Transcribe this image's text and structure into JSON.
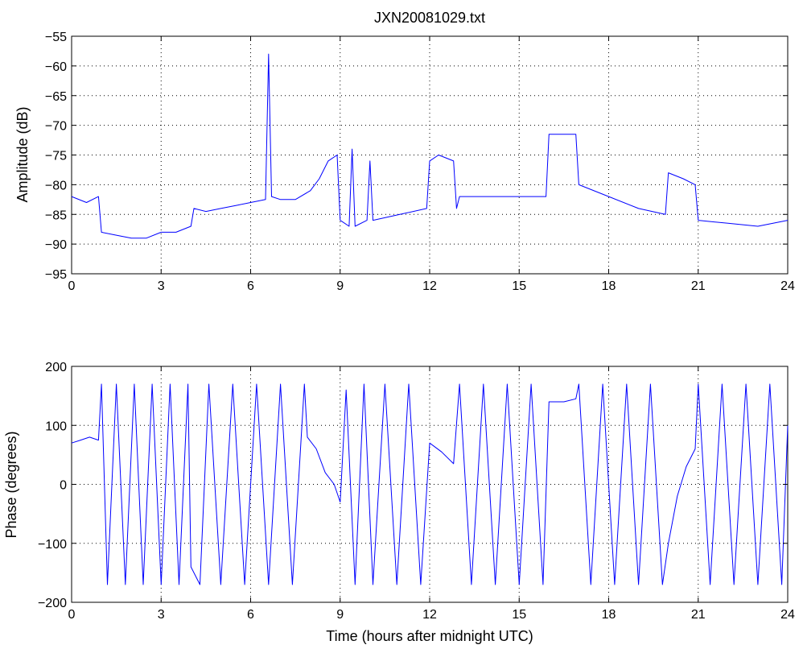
{
  "chart_data": [
    {
      "type": "line",
      "title": "JXN20081029.txt",
      "xlabel": "",
      "ylabel": "Amplitude (dB)",
      "xlim": [
        0,
        24
      ],
      "ylim": [
        -95,
        -55
      ],
      "xticks": [
        0,
        3,
        6,
        9,
        12,
        15,
        18,
        21,
        24
      ],
      "yticks": [
        -95,
        -90,
        -85,
        -80,
        -75,
        -70,
        -65,
        -60,
        -55
      ],
      "xtick_labels": [
        "0",
        "3",
        "6",
        "9",
        "12",
        "15",
        "18",
        "21",
        "24"
      ],
      "ytick_labels": [
        "−95",
        "−90",
        "−85",
        "−80",
        "−75",
        "−70",
        "−65",
        "−60",
        "−55"
      ],
      "grid": true,
      "series": [
        {
          "color": "#0000ff",
          "x": [
            0,
            0.5,
            0.9,
            1.0,
            1.5,
            2.0,
            2.5,
            3.0,
            3.5,
            4.0,
            4.1,
            4.5,
            5.0,
            5.5,
            6.0,
            6.5,
            6.6,
            6.7,
            7.0,
            7.5,
            8.0,
            8.3,
            8.6,
            8.9,
            9.0,
            9.3,
            9.4,
            9.5,
            9.9,
            10.0,
            10.1,
            11.0,
            11.9,
            12.0,
            12.3,
            12.8,
            12.9,
            13.0,
            14.0,
            15.0,
            15.9,
            16.0,
            16.5,
            16.9,
            17.0,
            18.0,
            19.0,
            19.9,
            20.0,
            20.5,
            20.9,
            21.0,
            22.0,
            23.0,
            24.0
          ],
          "y": [
            -82,
            -83,
            -82,
            -88,
            -88.5,
            -89,
            -89,
            -88,
            -88,
            -87,
            -84,
            -84.5,
            -84,
            -83.5,
            -83,
            -82.5,
            -58,
            -82,
            -82.5,
            -82.5,
            -81,
            -79,
            -76,
            -75,
            -86,
            -87,
            -74,
            -87,
            -86,
            -76,
            -86,
            -85,
            -84,
            -76,
            -75,
            -76,
            -84,
            -82,
            -82,
            -82,
            -82,
            -71.5,
            -71.5,
            -71.5,
            -80,
            -82,
            -84,
            -85,
            -78,
            -79,
            -80,
            -86,
            -86.5,
            -87,
            -86
          ]
        }
      ]
    },
    {
      "type": "line",
      "title": "",
      "xlabel": "Time (hours after midnight UTC)",
      "ylabel": "Phase (degrees)",
      "xlim": [
        0,
        24
      ],
      "ylim": [
        -200,
        200
      ],
      "xticks": [
        0,
        3,
        6,
        9,
        12,
        15,
        18,
        21,
        24
      ],
      "yticks": [
        -200,
        -100,
        0,
        100,
        200
      ],
      "xtick_labels": [
        "0",
        "3",
        "6",
        "9",
        "12",
        "15",
        "18",
        "21",
        "24"
      ],
      "ytick_labels": [
        "−200",
        "−100",
        "0",
        "100",
        "200"
      ],
      "grid": true,
      "series": [
        {
          "color": "#0000ff",
          "x": [
            0,
            0.3,
            0.6,
            0.9,
            1.0,
            1.2,
            1.5,
            1.8,
            2.1,
            2.4,
            2.7,
            3.0,
            3.3,
            3.6,
            3.9,
            4.0,
            4.3,
            4.6,
            5.0,
            5.4,
            5.8,
            6.2,
            6.6,
            7.0,
            7.4,
            7.8,
            7.9,
            8.2,
            8.5,
            8.8,
            9.0,
            9.2,
            9.5,
            9.8,
            10.1,
            10.5,
            10.9,
            11.3,
            11.7,
            12.0,
            12.4,
            12.8,
            13.0,
            13.4,
            13.8,
            14.2,
            14.6,
            15.0,
            15.4,
            15.8,
            16.0,
            16.5,
            16.9,
            17.0,
            17.4,
            17.8,
            18.2,
            18.6,
            19.0,
            19.4,
            19.8,
            20.0,
            20.3,
            20.6,
            20.9,
            21.0,
            21.4,
            21.8,
            22.2,
            22.6,
            23.0,
            23.4,
            23.8,
            24.0
          ],
          "y": [
            70,
            75,
            80,
            75,
            170,
            -170,
            170,
            -170,
            170,
            -170,
            170,
            -170,
            170,
            -170,
            170,
            -140,
            -170,
            170,
            -170,
            170,
            -170,
            170,
            -170,
            170,
            -170,
            170,
            80,
            60,
            20,
            0,
            -30,
            160,
            -170,
            170,
            -170,
            170,
            -170,
            170,
            -170,
            70,
            55,
            35,
            170,
            -170,
            170,
            -170,
            170,
            -170,
            170,
            -170,
            140,
            140,
            145,
            170,
            -170,
            170,
            -170,
            170,
            -170,
            170,
            -170,
            -100,
            -20,
            30,
            60,
            170,
            -170,
            170,
            -170,
            170,
            -170,
            170,
            -170,
            100
          ]
        }
      ]
    }
  ]
}
